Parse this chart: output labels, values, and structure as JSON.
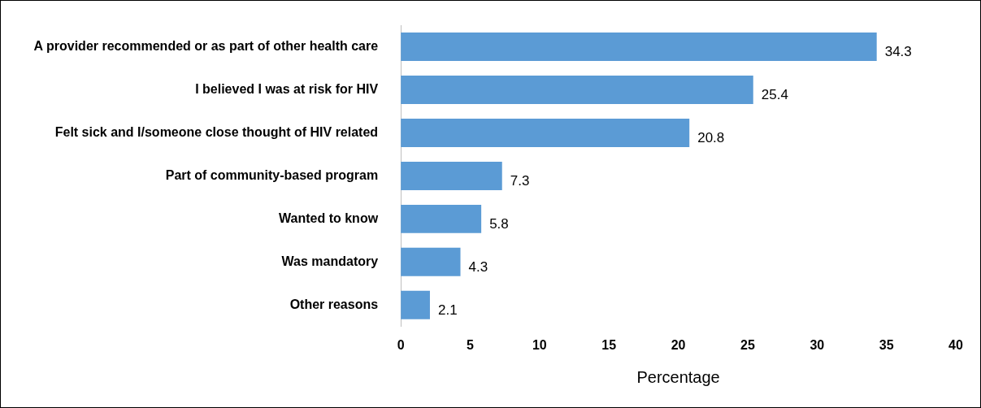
{
  "chart_data": {
    "type": "bar",
    "orientation": "horizontal",
    "xlabel": "Percentage",
    "categories": [
      "A provider recommended or as part of other health care",
      "I believed I was at risk for HIV",
      "Felt sick and I/someone close thought of HIV related",
      "Part of community-based program",
      "Wanted to know",
      "Was mandatory",
      "Other reasons"
    ],
    "values": [
      34.3,
      25.4,
      20.8,
      7.3,
      5.8,
      4.3,
      2.1
    ],
    "color": "#5b9bd5",
    "xlim": [
      0,
      40
    ],
    "xticks": [
      0,
      5,
      10,
      15,
      20,
      25,
      30,
      35,
      40
    ],
    "grid": false,
    "legend": false,
    "data_labels": true
  }
}
